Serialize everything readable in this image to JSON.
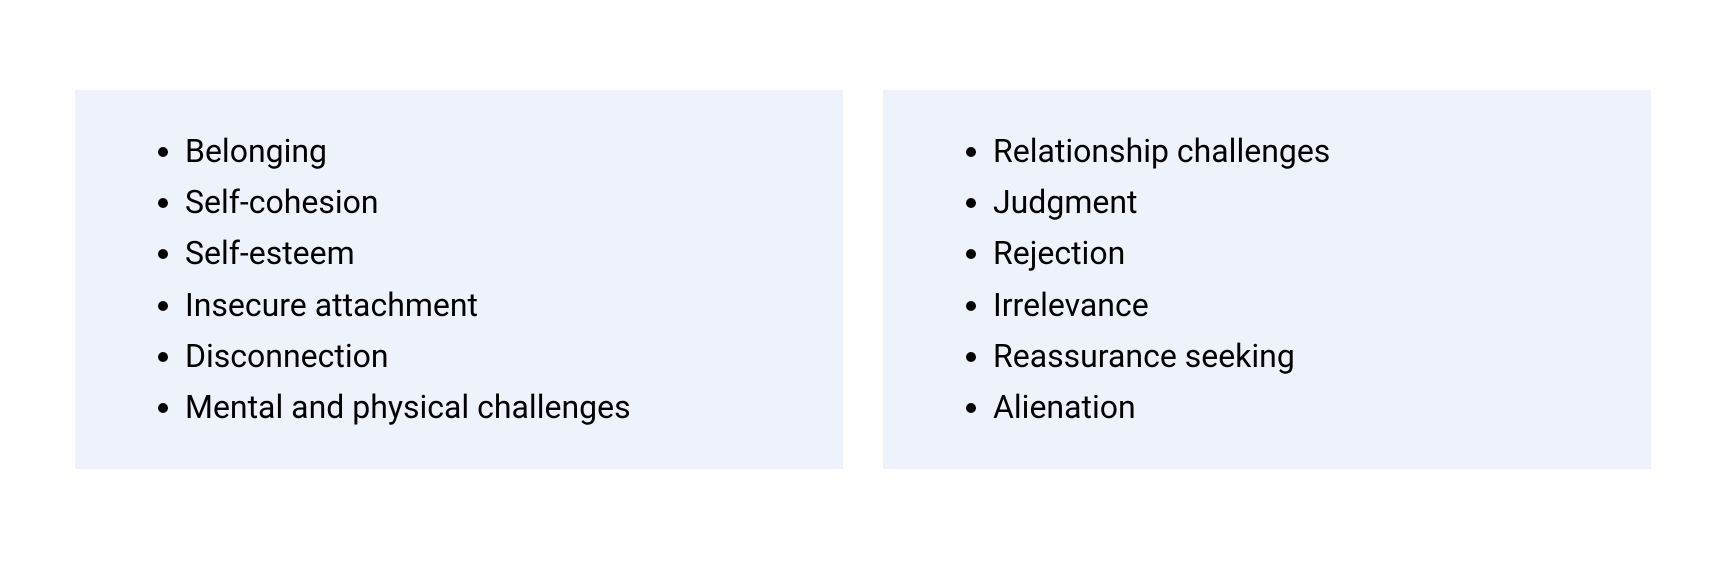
{
  "layout": {
    "background_color": "#ffffff",
    "card_background_color": "#eef2fb",
    "text_color": "#000000",
    "font_size": 32,
    "gap": 40
  },
  "left_list": {
    "items": [
      "Belonging",
      "Self-cohesion",
      "Self-esteem",
      "Insecure attachment",
      "Disconnection",
      "Mental and physical challenges"
    ]
  },
  "right_list": {
    "items": [
      "Relationship challenges",
      "Judgment",
      "Rejection",
      "Irrelevance",
      "Reassurance seeking",
      "Alienation"
    ]
  }
}
